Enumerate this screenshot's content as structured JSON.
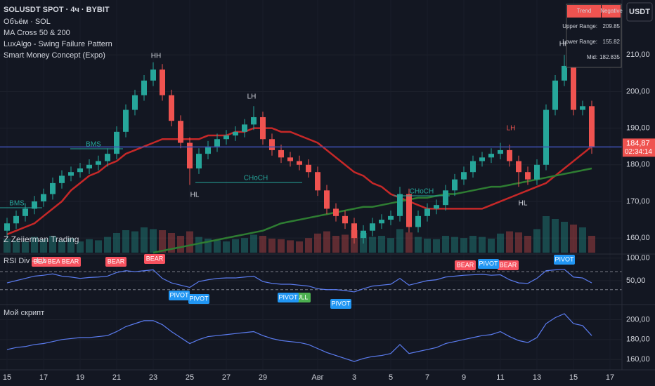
{
  "chart_data": [
    {
      "type": "candlestick",
      "title": "SOLUSDT SPOT · 4ч · BYBIT",
      "indicators": [
        "Объём · SOL",
        "MA Cross 50 & 200",
        "LuxAlgo - Swing Failure Pattern",
        "Smart Money Concept (Expo)"
      ],
      "watermark": "Z  Zeiierman Trading",
      "currency": "USDT",
      "price_tag": "184,87",
      "countdown": "02:34:14",
      "annotations": [
        "HH",
        "HH",
        "LH",
        "LH",
        "HL",
        "HL",
        "BMS",
        "BMS",
        "CHoCH",
        "CHoCH"
      ],
      "table": [
        [
          "Trend",
          "Negative"
        ],
        [
          "Upper Range:",
          "209.85"
        ],
        [
          "Lower Range:",
          "155.82"
        ],
        [
          "Mid:",
          "182.835"
        ]
      ],
      "categories": [
        "15",
        null,
        null,
        null,
        "17",
        null,
        null,
        null,
        "19",
        null,
        null,
        null,
        "21",
        null,
        null,
        null,
        "23",
        null,
        null,
        null,
        "25",
        null,
        null,
        null,
        "27",
        null,
        null,
        null,
        "29",
        null,
        null,
        null,
        null,
        null,
        "Авг",
        null,
        null,
        null,
        "3",
        null,
        null,
        null,
        "5",
        null,
        null,
        null,
        "7",
        null,
        null,
        null,
        "9",
        null,
        null,
        null,
        "11",
        null,
        null,
        null,
        "13",
        null,
        null,
        null,
        "15",
        null,
        null,
        null,
        "17"
      ],
      "open": [
        162,
        164,
        166,
        168,
        170,
        172,
        175,
        177,
        178,
        179,
        180,
        181,
        183,
        189,
        195,
        199,
        203,
        206,
        199,
        192,
        186,
        179,
        183,
        185,
        187,
        188,
        189,
        191,
        193,
        187,
        184,
        182,
        181,
        180,
        178,
        173,
        168,
        166,
        164,
        160,
        162,
        164,
        165,
        166,
        172,
        163,
        166,
        168,
        169,
        173,
        176,
        178,
        181,
        182,
        183,
        184,
        181,
        178,
        176,
        180,
        195,
        203,
        207,
        195,
        196,
        null,
        null
      ],
      "high": [
        165.5,
        167.5,
        169.5,
        171.5,
        173.5,
        176.5,
        178.5,
        179.5,
        180.5,
        181.5,
        182.5,
        184.5,
        190.5,
        196.5,
        200.5,
        204.5,
        208,
        207.5,
        200.5,
        193.5,
        187.5,
        184.5,
        186.5,
        188.5,
        189.5,
        190.5,
        192.5,
        196,
        194.5,
        188.5,
        185.5,
        183.5,
        182.5,
        181.5,
        179.5,
        174.5,
        169.5,
        167.5,
        165.5,
        163.5,
        165.5,
        166.5,
        167.5,
        174,
        173.5,
        167.5,
        169.5,
        170.5,
        174.5,
        177.5,
        179.5,
        182.5,
        183.5,
        184.5,
        186,
        185.5,
        182.5,
        179.5,
        181.5,
        196.5,
        204.5,
        210,
        208.5,
        197.5,
        197.5,
        null,
        null
      ],
      "low": [
        160.5,
        162.5,
        164.5,
        166.5,
        168.5,
        170.5,
        173.5,
        175.5,
        176.5,
        177.5,
        178.5,
        179.5,
        181.5,
        187.5,
        193.5,
        197.5,
        201.5,
        197.5,
        190.5,
        184.5,
        174.5,
        177.5,
        181.5,
        183.5,
        185.5,
        186.5,
        187.5,
        189.5,
        185.5,
        182.5,
        180.5,
        179.5,
        178.5,
        176.5,
        171.5,
        166.5,
        164.5,
        162.5,
        158.5,
        158.5,
        160.5,
        162.5,
        163.5,
        164.5,
        161.5,
        161.5,
        164.5,
        166.5,
        167.5,
        171.5,
        174.5,
        176.5,
        179.5,
        180.5,
        181.5,
        179.5,
        174,
        174.5,
        174.5,
        178.5,
        193.5,
        201.5,
        193.5,
        193.5,
        183,
        null,
        null
      ],
      "close": [
        164,
        166,
        168,
        170,
        172,
        175,
        177,
        178,
        179,
        180,
        181,
        183,
        189,
        195,
        199,
        203,
        206,
        199,
        192,
        186,
        179,
        183,
        185,
        187,
        188,
        189,
        191,
        193,
        187,
        184,
        182,
        181,
        180,
        178,
        173,
        168,
        166,
        164,
        160,
        162,
        164,
        165,
        166,
        172,
        163,
        166,
        168,
        169,
        173,
        176,
        178,
        181,
        182,
        183,
        184,
        181,
        178,
        176,
        180,
        195,
        203,
        207,
        195,
        196,
        184.87,
        null,
        null
      ],
      "up_color": "#26a69a",
      "down_color": "#ef5350",
      "ma_lines": [
        {
          "color": "#c62828",
          "values": [
            161,
            162,
            163,
            164,
            166,
            168,
            170,
            173,
            175,
            177,
            178,
            180,
            181,
            183,
            184,
            185,
            186,
            187,
            187,
            187,
            187,
            187,
            188,
            188,
            188,
            189,
            189,
            190,
            190,
            190,
            189,
            189,
            188,
            187,
            186,
            184,
            182,
            180,
            178,
            177,
            175,
            174,
            172,
            171,
            170,
            169,
            168,
            168,
            168,
            168,
            168,
            168,
            168,
            169,
            170,
            171,
            172,
            173,
            174,
            175,
            177,
            179,
            181,
            183,
            185,
            null,
            null
          ]
        },
        {
          "color": "#2e7d32",
          "values": [
            null,
            null,
            null,
            null,
            null,
            null,
            null,
            null,
            null,
            null,
            null,
            null,
            null,
            null,
            null,
            null,
            156,
            156.5,
            157,
            157.5,
            158,
            158.5,
            159,
            159.5,
            160,
            160.5,
            161,
            161.5,
            162,
            163,
            164,
            164.5,
            165,
            165.5,
            166,
            166.5,
            167,
            167.5,
            168,
            168.5,
            168.5,
            169,
            169.5,
            170,
            170.5,
            171,
            171,
            171.5,
            172,
            172,
            172.5,
            173,
            173.5,
            174,
            174,
            174.5,
            175,
            175.5,
            176,
            176.5,
            177,
            177.5,
            178,
            178.5,
            179,
            null,
            null
          ]
        }
      ],
      "volume": {
        "ylim": [
          0,
          100
        ],
        "values": [
          25,
          22,
          20,
          28,
          24,
          30,
          22,
          26,
          20,
          24,
          22,
          28,
          35,
          40,
          38,
          45,
          42,
          40,
          35,
          30,
          38,
          28,
          25,
          22,
          20,
          24,
          26,
          32,
          30,
          25,
          24,
          22,
          20,
          26,
          34,
          38,
          30,
          32,
          40,
          35,
          28,
          30,
          26,
          42,
          36,
          28,
          25,
          24,
          30,
          28,
          26,
          30,
          28,
          25,
          34,
          38,
          36,
          30,
          42,
          65,
          60,
          55,
          50,
          45,
          30,
          null,
          null
        ]
      },
      "ylim": [
        156,
        225
      ],
      "yticks": [
        {
          "value": 160,
          "label": "160,00"
        },
        {
          "value": 170,
          "label": "170,00"
        },
        {
          "value": 180,
          "label": "180,00"
        },
        {
          "value": 190,
          "label": "190,00"
        },
        {
          "value": 200,
          "label": "200,00"
        },
        {
          "value": 210,
          "label": "210,00"
        }
      ],
      "grid": true
    },
    {
      "type": "line",
      "title": "RSI Div - Lib",
      "color": "#5b7cf0",
      "values": [
        45,
        50,
        55,
        60,
        62,
        65,
        60,
        58,
        55,
        57,
        58,
        60,
        68,
        72,
        70,
        72,
        74,
        55,
        45,
        40,
        35,
        48,
        52,
        55,
        56,
        56,
        58,
        60,
        48,
        44,
        42,
        42,
        40,
        38,
        32,
        30,
        30,
        28,
        25,
        32,
        38,
        40,
        42,
        55,
        40,
        45,
        50,
        52,
        58,
        60,
        62,
        63,
        64,
        62,
        63,
        52,
        45,
        44,
        55,
        72,
        74,
        75,
        58,
        56,
        45,
        null,
        null
      ],
      "levels": [
        70,
        30
      ],
      "signals": [
        "BEAR",
        "BEAR",
        "BEAR",
        "BEAR",
        "BEAR",
        "PIVOT",
        "PIVOT",
        "BULL",
        "PIVOT",
        "PIVOT",
        "BEAR",
        "BEAR",
        "PIVOT",
        "PIVOT"
      ],
      "ylim": [
        0,
        109
      ],
      "yticks": [
        {
          "value": 50,
          "label": "50,00"
        },
        {
          "value": 100,
          "label": "100,00"
        }
      ]
    },
    {
      "type": "line",
      "title": "Мой скрипт",
      "color": "#5b7cf0",
      "values": [
        170,
        172,
        173,
        175,
        176,
        178,
        180,
        181,
        182,
        182,
        183,
        184,
        188,
        193,
        196,
        199,
        199,
        195,
        188,
        182,
        176,
        180,
        183,
        184,
        185,
        186,
        187,
        188,
        184,
        181,
        179,
        178,
        177,
        175,
        171,
        167,
        164,
        161,
        158,
        161,
        163,
        164,
        166,
        175,
        166,
        168,
        170,
        172,
        176,
        178,
        180,
        182,
        184,
        185,
        188,
        183,
        179,
        177,
        182,
        196,
        202,
        206,
        196,
        194,
        184,
        null,
        null
      ],
      "ylim": [
        151,
        213
      ],
      "yticks": [
        {
          "value": 160,
          "label": "160,00"
        },
        {
          "value": 180,
          "label": "180,00"
        },
        {
          "value": 200,
          "label": "200,00"
        }
      ]
    }
  ]
}
